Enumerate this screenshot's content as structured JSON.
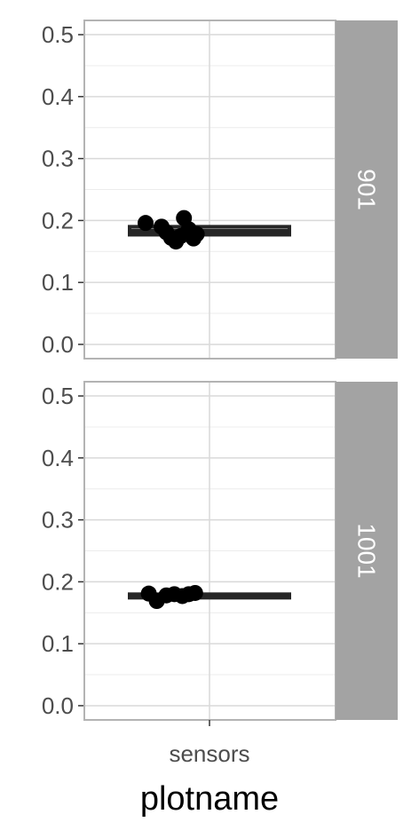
{
  "chart_data": {
    "type": "boxplot",
    "x_title": "plotname",
    "categories": [
      "sensors"
    ],
    "y_ticks": [
      "0.0",
      "0.1",
      "0.2",
      "0.3",
      "0.4",
      "0.5"
    ],
    "y_tick_values": [
      0.0,
      0.1,
      0.2,
      0.3,
      0.4,
      0.5
    ],
    "ylim": [
      -0.023,
      0.523
    ],
    "grid": true,
    "facets": [
      {
        "label": "901",
        "box": {
          "q1": 0.177,
          "median": 0.183,
          "q3": 0.19,
          "whisker_low": 0.177,
          "whisker_high": 0.19
        },
        "points": [
          {
            "x": 0.1,
            "y": 0.196
          },
          {
            "x": 0.2,
            "y": 0.19
          },
          {
            "x": 0.23,
            "y": 0.181
          },
          {
            "x": 0.26,
            "y": 0.172
          },
          {
            "x": 0.29,
            "y": 0.166
          },
          {
            "x": 0.32,
            "y": 0.175
          },
          {
            "x": 0.34,
            "y": 0.204
          },
          {
            "x": 0.37,
            "y": 0.186
          },
          {
            "x": 0.4,
            "y": 0.171
          },
          {
            "x": 0.42,
            "y": 0.178
          }
        ]
      },
      {
        "label": "1001",
        "box": {
          "q1": 0.176,
          "median": 0.178,
          "q3": 0.18,
          "whisker_low": 0.176,
          "whisker_high": 0.18
        },
        "points": [
          {
            "x": 0.12,
            "y": 0.181
          },
          {
            "x": 0.17,
            "y": 0.169
          },
          {
            "x": 0.23,
            "y": 0.178
          },
          {
            "x": 0.28,
            "y": 0.18
          },
          {
            "x": 0.33,
            "y": 0.177
          },
          {
            "x": 0.37,
            "y": 0.18
          },
          {
            "x": 0.41,
            "y": 0.182
          }
        ]
      }
    ],
    "colors": {
      "panel_border": "#b3b3b3",
      "grid_major": "#d9d9d9",
      "grid_minor": "#ececec",
      "strip_fill": "#a3a3a3",
      "box": "#262626",
      "points": "#000000"
    }
  }
}
